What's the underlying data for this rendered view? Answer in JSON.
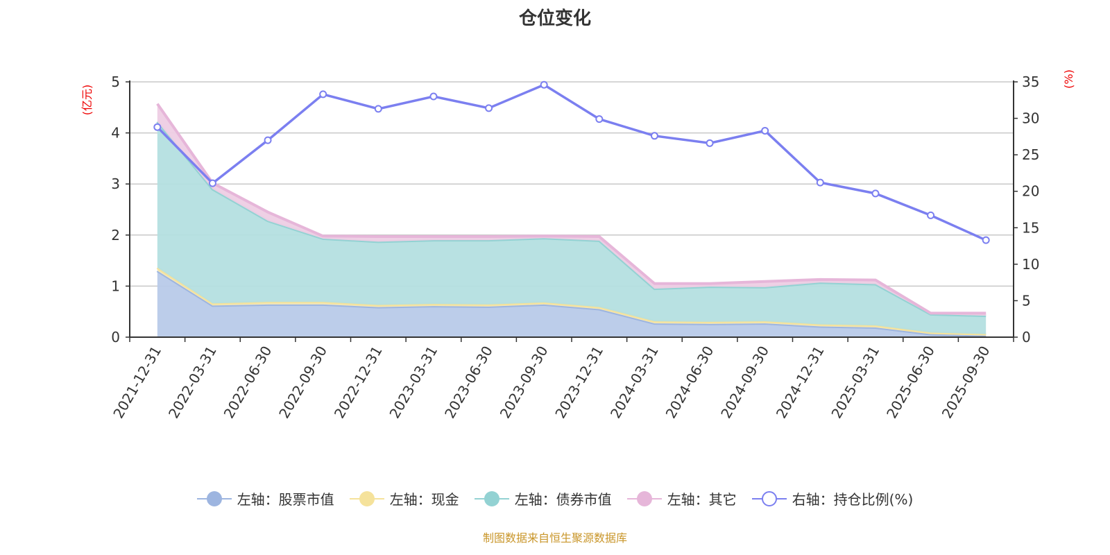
{
  "chart_data": {
    "type": "area",
    "title": "仓位变化",
    "left_unit": "(亿元)",
    "right_unit": "(%)",
    "categories": [
      "2021-12-31",
      "2022-03-31",
      "2022-06-30",
      "2022-09-30",
      "2022-12-31",
      "2023-03-31",
      "2023-06-30",
      "2023-09-30",
      "2023-12-31",
      "2024-03-31",
      "2024-06-30",
      "2024-09-30",
      "2024-12-31",
      "2025-03-31",
      "2025-06-30",
      "2025-09-30"
    ],
    "left_axis": {
      "min": 0,
      "max": 5,
      "ticks": [
        0,
        1,
        2,
        3,
        4,
        5
      ]
    },
    "right_axis": {
      "min": 0,
      "max": 35,
      "ticks": [
        0,
        5,
        10,
        15,
        20,
        25,
        30,
        35
      ]
    },
    "grid": true,
    "legend_position": "bottom",
    "series": [
      {
        "name": "左轴：股票市值",
        "axis": "left",
        "stacked": true,
        "color": "#9db5e0",
        "fill": "#b8cae9",
        "values": [
          1.3,
          0.62,
          0.64,
          0.64,
          0.59,
          0.61,
          0.6,
          0.64,
          0.55,
          0.27,
          0.26,
          0.27,
          0.21,
          0.19,
          0.06,
          0.03
        ]
      },
      {
        "name": "左轴：现金",
        "axis": "left",
        "stacked": true,
        "color": "#f5e29b",
        "fill": "#f7eab8",
        "values": [
          0.06,
          0.04,
          0.05,
          0.05,
          0.04,
          0.04,
          0.04,
          0.04,
          0.04,
          0.04,
          0.04,
          0.04,
          0.04,
          0.04,
          0.03,
          0.03
        ]
      },
      {
        "name": "左轴：债券市值",
        "axis": "left",
        "stacked": true,
        "color": "#93d2d3",
        "fill": "#b4dfe0",
        "values": [
          2.86,
          2.24,
          1.59,
          1.24,
          1.24,
          1.25,
          1.26,
          1.26,
          1.3,
          0.64,
          0.69,
          0.67,
          0.82,
          0.81,
          0.36,
          0.36
        ]
      },
      {
        "name": "左轴：其它",
        "axis": "left",
        "stacked": true,
        "color": "#e6b6d9",
        "fill": "#eecde4",
        "values": [
          0.35,
          0.12,
          0.17,
          0.05,
          0.1,
          0.07,
          0.07,
          0.04,
          0.08,
          0.1,
          0.06,
          0.11,
          0.06,
          0.08,
          0.02,
          0.05
        ]
      },
      {
        "name": "右轴：持仓比例(%)",
        "axis": "right",
        "type": "line",
        "color": "#7b7ff0",
        "values": [
          28.8,
          21.1,
          27.0,
          33.3,
          31.3,
          33.0,
          31.4,
          34.6,
          29.9,
          27.6,
          26.6,
          28.3,
          21.2,
          19.7,
          16.7,
          13.3
        ]
      }
    ]
  },
  "source": "制图数据来自恒生聚源数据库"
}
